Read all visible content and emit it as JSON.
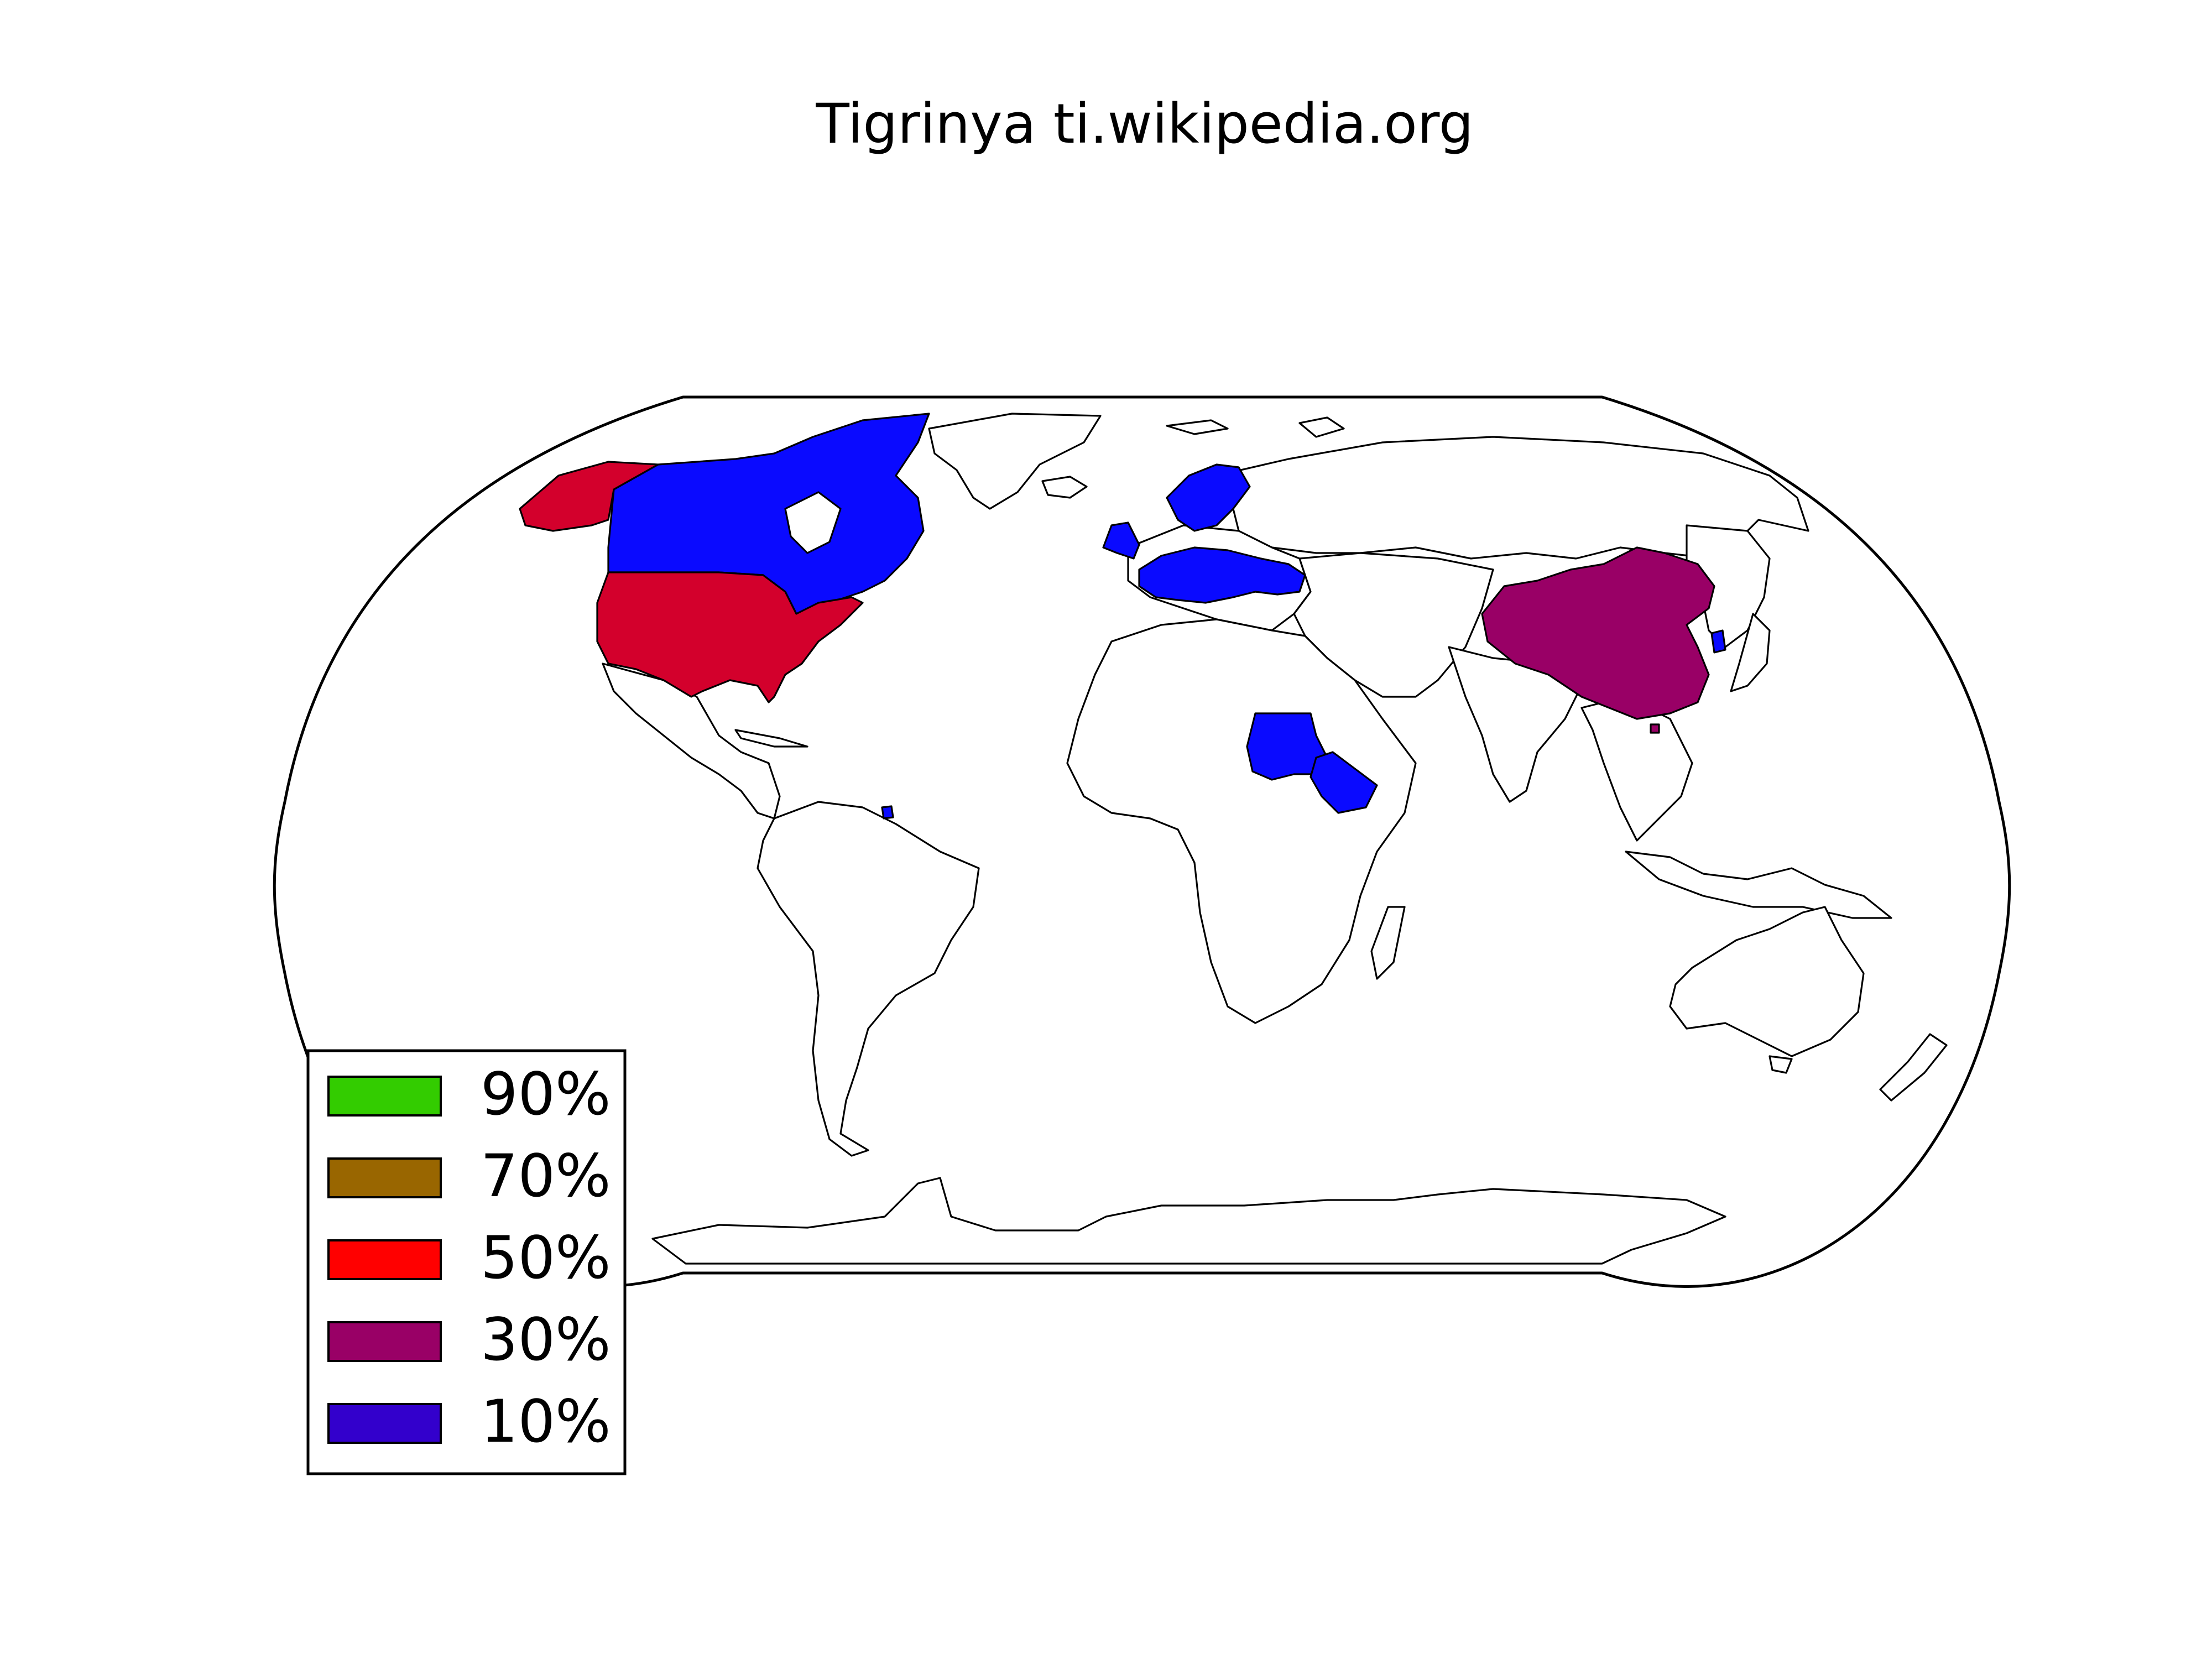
{
  "title": "Tigrinya ti.wikipedia.org",
  "colors": {
    "c90": "#33cc00",
    "c70": "#996600",
    "c50": "#ff0000",
    "c30": "#990066",
    "c10": "#3300cc",
    "map_10": "#0a0aff",
    "map_30": "#990066",
    "map_50": "#d3002c",
    "land": "#ffffff",
    "border": "#000000"
  },
  "legend": [
    {
      "label": "90%",
      "color": "#33cc00"
    },
    {
      "label": "70%",
      "color": "#996600"
    },
    {
      "label": "50%",
      "color": "#ff0000"
    },
    {
      "label": "30%",
      "color": "#990066"
    },
    {
      "label": "10%",
      "color": "#3300cc"
    }
  ],
  "regions": {
    "50%": [
      "United States"
    ],
    "30%": [
      "China"
    ],
    "10%": [
      "Canada",
      "Eritrea",
      "Ethiopia",
      "Sudan",
      "South Korea",
      "French Guiana",
      "United Kingdom",
      "Ireland",
      "Norway",
      "Sweden",
      "Finland",
      "Germany",
      "France",
      "Netherlands",
      "Poland",
      "Ukraine",
      "Italy"
    ]
  }
}
